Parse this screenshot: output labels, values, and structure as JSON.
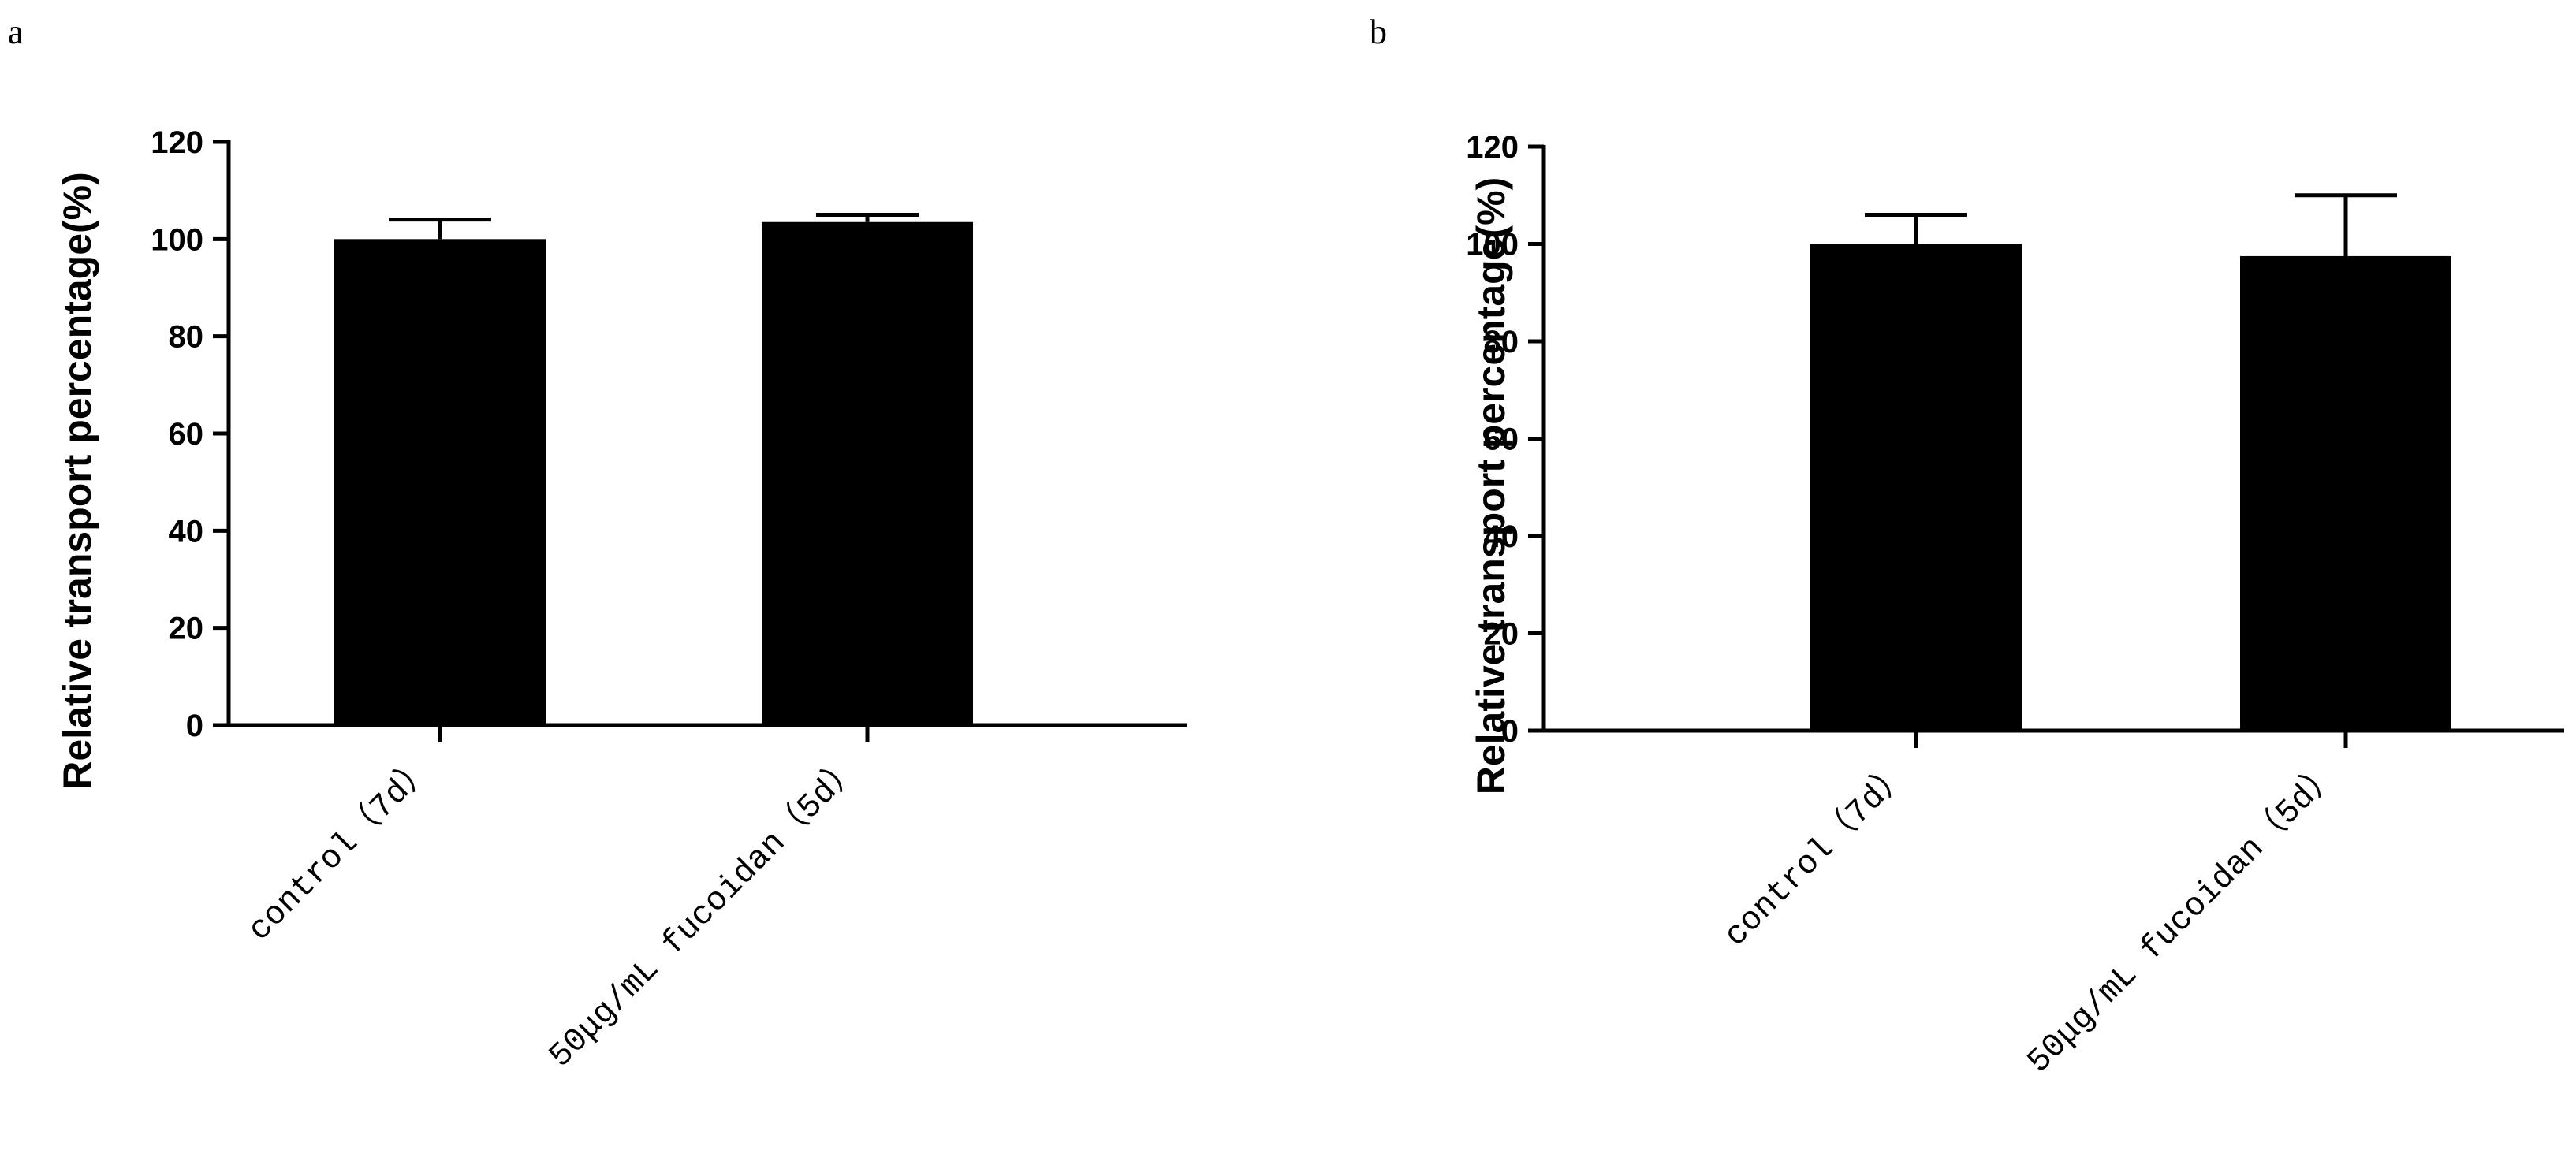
{
  "chart_data": [
    {
      "panel_label": "a",
      "type": "bar",
      "categories": [
        "control（7d）",
        "50μg/mL fucoidan（5d）"
      ],
      "values": [
        100,
        103.5
      ],
      "error_upper": [
        104,
        105
      ],
      "ylabel": "Relative transport percentage(%)",
      "xlabel": "",
      "ylim": [
        0,
        120
      ],
      "yticks": [
        0,
        20,
        40,
        60,
        80,
        100,
        120
      ],
      "bar_color": "#000000",
      "grid": false,
      "legend": "none"
    },
    {
      "panel_label": "b",
      "type": "bar",
      "categories": [
        "control（7d）",
        "50μg/mL fucoidan（5d）"
      ],
      "values": [
        100,
        97.5
      ],
      "error_upper": [
        106,
        110
      ],
      "ylabel": "Relative transport percentage(%)",
      "xlabel": "",
      "ylim": [
        0,
        120
      ],
      "yticks": [
        0,
        20,
        40,
        60,
        80,
        100,
        120
      ],
      "bar_color": "#000000",
      "grid": false,
      "legend": "none"
    }
  ]
}
